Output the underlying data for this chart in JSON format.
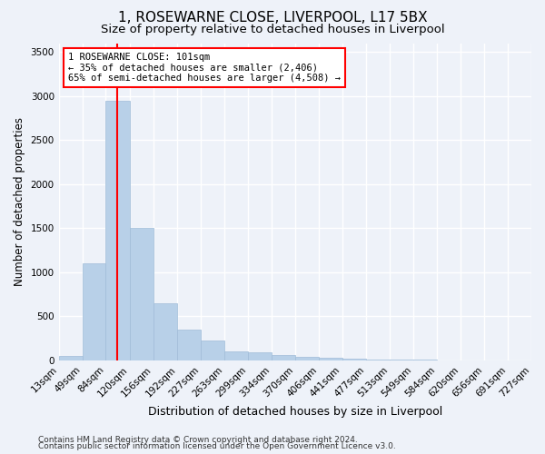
{
  "title": "1, ROSEWARNE CLOSE, LIVERPOOL, L17 5BX",
  "subtitle": "Size of property relative to detached houses in Liverpool",
  "xlabel": "Distribution of detached houses by size in Liverpool",
  "ylabel": "Number of detached properties",
  "footer_line1": "Contains HM Land Registry data © Crown copyright and database right 2024.",
  "footer_line2": "Contains public sector information licensed under the Open Government Licence v3.0.",
  "bar_color": "#b8d0e8",
  "bar_edge_color": "#a0bcd8",
  "background_color": "#eef2f9",
  "grid_color": "#ffffff",
  "annotation_line1": "1 ROSEWARNE CLOSE: 101sqm",
  "annotation_line2": "← 35% of detached houses are smaller (2,406)",
  "annotation_line3": "65% of semi-detached houses are larger (4,508) →",
  "red_line_x": 101,
  "bin_edges": [
    13,
    49,
    84,
    120,
    156,
    192,
    227,
    263,
    299,
    334,
    370,
    406,
    441,
    477,
    513,
    549,
    584,
    620,
    656,
    691,
    727
  ],
  "bar_heights": [
    50,
    1100,
    2950,
    1500,
    650,
    350,
    230,
    100,
    95,
    60,
    40,
    30,
    20,
    10,
    8,
    5,
    4,
    3,
    2,
    1
  ],
  "ylim": [
    0,
    3600
  ],
  "yticks": [
    0,
    500,
    1000,
    1500,
    2000,
    2500,
    3000,
    3500
  ],
  "title_fontsize": 11,
  "subtitle_fontsize": 9.5,
  "axis_label_fontsize": 8.5,
  "tick_fontsize": 7.5,
  "footer_fontsize": 6.5
}
